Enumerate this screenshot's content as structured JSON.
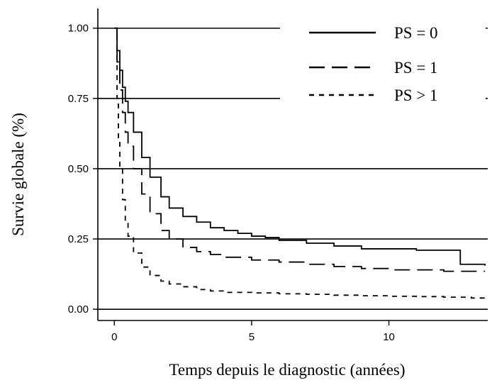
{
  "chart_data": {
    "type": "line",
    "title": "",
    "xlabel": "Temps depuis le diagnostic (années)",
    "ylabel": "Survie globale (%)",
    "xlim": [
      -0.6,
      13.6
    ],
    "ylim": [
      -0.04,
      1.07
    ],
    "x_ticks": [
      0,
      5,
      10
    ],
    "x_tick_labels": [
      "0",
      "5",
      "10"
    ],
    "y_ticks": [
      0.0,
      0.25,
      0.5,
      0.75,
      1.0
    ],
    "y_tick_labels": [
      "0.00",
      "0.25",
      "0.50",
      "0.75",
      "1.00"
    ],
    "grid": "horizontal lines at y ticks",
    "legend_position": "top-right",
    "series": [
      {
        "name": "PS = 0",
        "style": "solid",
        "x": [
          0,
          0.1,
          0.2,
          0.3,
          0.4,
          0.5,
          0.7,
          1.0,
          1.3,
          1.7,
          2.0,
          2.5,
          3.0,
          3.5,
          4.0,
          4.5,
          5.0,
          5.5,
          6.0,
          7.0,
          8.0,
          9.0,
          10.0,
          11.0,
          12.0,
          12.5,
          12.6,
          13.5
        ],
        "y": [
          1.0,
          0.92,
          0.85,
          0.79,
          0.74,
          0.7,
          0.63,
          0.54,
          0.47,
          0.4,
          0.36,
          0.33,
          0.31,
          0.29,
          0.28,
          0.27,
          0.26,
          0.255,
          0.245,
          0.235,
          0.225,
          0.215,
          0.215,
          0.21,
          0.21,
          0.21,
          0.16,
          0.155
        ]
      },
      {
        "name": "PS = 1",
        "style": "long-dash",
        "x": [
          0,
          0.1,
          0.2,
          0.3,
          0.4,
          0.5,
          0.7,
          1.0,
          1.3,
          1.7,
          2.0,
          2.5,
          3.0,
          3.5,
          4.0,
          5.0,
          6.0,
          7.0,
          8.0,
          9.0,
          10.0,
          11.0,
          12.0,
          13.5
        ],
        "y": [
          1.0,
          0.88,
          0.78,
          0.7,
          0.63,
          0.58,
          0.5,
          0.41,
          0.34,
          0.28,
          0.25,
          0.22,
          0.205,
          0.195,
          0.185,
          0.175,
          0.168,
          0.16,
          0.152,
          0.145,
          0.14,
          0.14,
          0.135,
          0.135
        ]
      },
      {
        "name": "PS > 1",
        "style": "short-dash",
        "x": [
          0,
          0.1,
          0.15,
          0.2,
          0.3,
          0.4,
          0.5,
          0.7,
          1.0,
          1.3,
          1.7,
          2.0,
          2.5,
          3.0,
          3.5,
          4.0,
          5.0,
          6.0,
          7.0,
          8.0,
          9.0,
          10.0,
          11.0,
          12.0,
          13.0,
          13.5
        ],
        "y": [
          1.0,
          0.75,
          0.6,
          0.5,
          0.39,
          0.31,
          0.26,
          0.2,
          0.15,
          0.12,
          0.1,
          0.09,
          0.08,
          0.07,
          0.065,
          0.06,
          0.058,
          0.055,
          0.053,
          0.05,
          0.048,
          0.046,
          0.045,
          0.043,
          0.04,
          0.04
        ]
      }
    ]
  }
}
